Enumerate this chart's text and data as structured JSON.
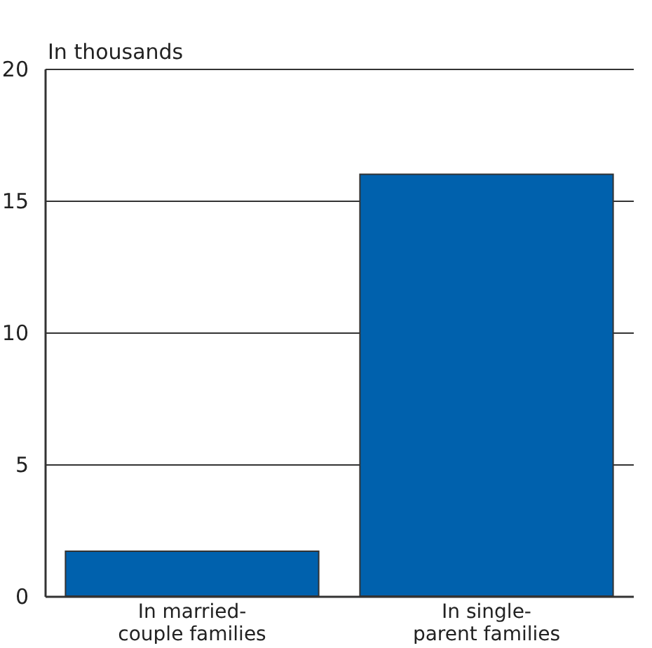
{
  "chart_data": {
    "type": "bar",
    "ylabel": "In thousands",
    "categories": [
      "In married-couple families",
      "In single-parent families"
    ],
    "values": [
      1.7,
      16.0
    ],
    "color": "#0061ad",
    "ylim": [
      0,
      20
    ],
    "yticks": [
      0,
      5,
      10,
      15,
      20
    ],
    "grid": "y"
  }
}
